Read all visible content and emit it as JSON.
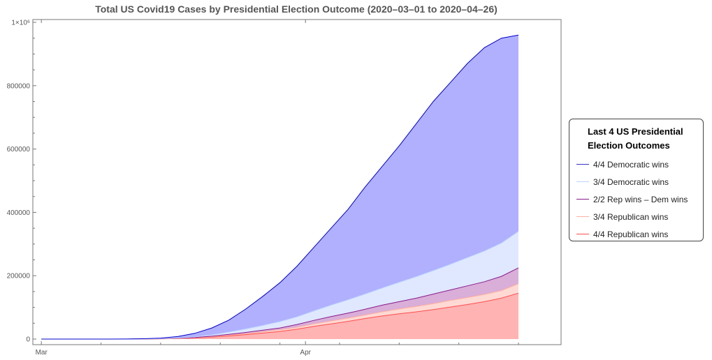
{
  "chart_data": {
    "type": "area",
    "stacked": true,
    "title": "Total US Covid19 Cases by Presidential Election Outcome (2020–03–01 to 2020–04–26)",
    "xlabel": "",
    "ylabel": "",
    "x_start": "2020-03-01",
    "x_end": "2020-04-26",
    "x_ticks": [
      {
        "date": "2020-03-01",
        "label": "Mar"
      },
      {
        "date": "2020-04-01",
        "label": "Apr"
      }
    ],
    "ylim": [
      0,
      1000000
    ],
    "y_ticks": [
      {
        "value": 0,
        "label": "0"
      },
      {
        "value": 200000,
        "label": "200000"
      },
      {
        "value": 400000,
        "label": "400000"
      },
      {
        "value": 600000,
        "label": "600000"
      },
      {
        "value": 800000,
        "label": "800000"
      },
      {
        "value": 1000000,
        "label": "1×10⁶"
      }
    ],
    "x": [
      "2020-03-01",
      "2020-03-03",
      "2020-03-05",
      "2020-03-07",
      "2020-03-09",
      "2020-03-11",
      "2020-03-13",
      "2020-03-15",
      "2020-03-17",
      "2020-03-19",
      "2020-03-21",
      "2020-03-23",
      "2020-03-25",
      "2020-03-27",
      "2020-03-29",
      "2020-03-31",
      "2020-04-02",
      "2020-04-04",
      "2020-04-06",
      "2020-04-08",
      "2020-04-10",
      "2020-04-12",
      "2020-04-14",
      "2020-04-16",
      "2020-04-18",
      "2020-04-20",
      "2020-04-22",
      "2020-04-24",
      "2020-04-26"
    ],
    "cumulative": true,
    "series": [
      {
        "name": "4/4 Republican wins",
        "color": "#ff4d4d",
        "fill": "#ffb3b3",
        "values": [
          0,
          0,
          0,
          0,
          0,
          0,
          200,
          600,
          1500,
          3000,
          6000,
          10000,
          14000,
          19000,
          24000,
          31000,
          40000,
          48000,
          56000,
          65000,
          73000,
          80000,
          86000,
          93000,
          101000,
          109000,
          118000,
          129000,
          145000
        ]
      },
      {
        "name": "3/4 Republican wins",
        "color": "#ffb0a0",
        "fill": "#ffd9d4",
        "values": [
          0,
          0,
          0,
          0,
          0,
          0,
          300,
          800,
          2000,
          4000,
          7500,
          12000,
          17000,
          23000,
          29000,
          37000,
          48000,
          57000,
          66000,
          76000,
          86000,
          95000,
          103000,
          112000,
          122000,
          131000,
          141000,
          153000,
          175000
        ]
      },
      {
        "name": "2/2 Rep wins – Dem wins",
        "color": "#8b1a8b",
        "fill": "#d9aed9",
        "values": [
          0,
          0,
          0,
          0,
          0,
          0,
          400,
          1000,
          2600,
          5000,
          9000,
          15000,
          21000,
          28000,
          35000,
          46000,
          59000,
          71000,
          82000,
          94000,
          107000,
          118000,
          129000,
          142000,
          155000,
          168000,
          181000,
          198000,
          225000
        ]
      },
      {
        "name": "3/4 Democratic wins",
        "color": "#bcd2ff",
        "fill": "#dfe8ff",
        "values": [
          0,
          0,
          0,
          0,
          0,
          0,
          500,
          1400,
          3500,
          7000,
          13000,
          22000,
          32000,
          43000,
          55000,
          70000,
          89000,
          107000,
          124000,
          142000,
          161000,
          179000,
          197000,
          216000,
          236000,
          257000,
          278000,
          303000,
          340000
        ]
      },
      {
        "name": "4/4 Democratic wins",
        "color": "#0000cc",
        "fill": "#b0b0ff",
        "values": [
          0,
          0,
          0,
          0,
          100,
          300,
          1000,
          3000,
          8000,
          18000,
          35000,
          60000,
          95000,
          135000,
          178000,
          230000,
          290000,
          350000,
          410000,
          480000,
          545000,
          610000,
          680000,
          750000,
          810000,
          870000,
          920000,
          950000,
          960000
        ]
      }
    ],
    "legend": {
      "title": "Last 4 US Presidential Election Outcomes",
      "placement": "right",
      "entries": [
        {
          "label": "4/4 Democratic wins",
          "color": "#3333cc"
        },
        {
          "label": "3/4 Democratic wins",
          "color": "#bcd2ff"
        },
        {
          "label": "2/2 Rep wins – Dem wins",
          "color": "#8b1a8b"
        },
        {
          "label": "3/4 Republican wins",
          "color": "#ffb0a0"
        },
        {
          "label": "4/4 Republican wins",
          "color": "#ff4d4d"
        }
      ]
    }
  }
}
